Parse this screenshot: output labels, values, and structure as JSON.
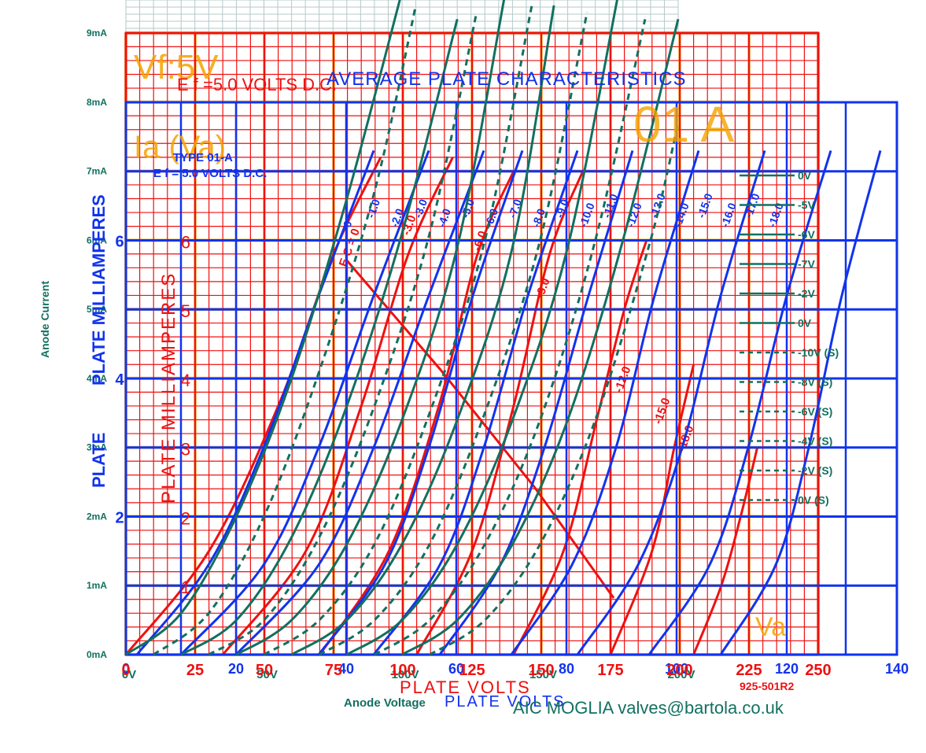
{
  "colors": {
    "red": "#ee1111",
    "blue": "#1133ee",
    "green": "#127060",
    "orange": "#f5a300",
    "grey_grid": "#b6c8c8"
  },
  "overlay_text": {
    "vf": "Vf:5V",
    "ef_red": "E f =5.0 VOLTS D.C.",
    "title_red": "AVERAGE PLATE CHARACTERISTICS",
    "type_blue_1": "TYPE 01-A",
    "type_blue_2": "E f = 5.0 VOLTS D.C.",
    "ia_va": "Ia (Va)",
    "big_type": "01 A",
    "blue_ylabel": "PLATE MILLIAMPERES",
    "red_ylabel": "PLATE MILLIAMPERES",
    "blue_ylabel_plate": "PLATE",
    "blue_xlabel": "PLATE VOLTS",
    "red_xlabel": "PLATE VOLTS",
    "red_code": "925-501R2",
    "credit": "AIC MOGLIA valves@bartola.co.uk",
    "va_corner": "Va"
  },
  "chart_data": [
    {
      "type": "line",
      "name": "overlay (teal)",
      "ylabel": "Anode Current",
      "xlabel": "Anode Voltage",
      "xlim": [
        0,
        200
      ],
      "ylim": [
        0,
        9
      ],
      "x_ticks": [
        "0V",
        "50V",
        "100V",
        "150V",
        "200V"
      ],
      "y_ticks": [
        "0mA",
        "1mA",
        "2mA",
        "3mA",
        "4mA",
        "5mA",
        "6mA",
        "7mA",
        "8mA",
        "9mA"
      ],
      "legend": [
        "0V",
        "-5V",
        "-6V",
        "-7V",
        "-2V",
        "0V",
        "-10V (S)",
        "-8V (S)",
        "-6V (S)",
        "-4V (S)",
        "-2V (S)",
        "0V (S)"
      ],
      "legend_placement": "right",
      "series": [
        {
          "name": "0V",
          "x": [
            0,
            20,
            40,
            60,
            80,
            100
          ],
          "y": [
            0,
            0.6,
            2.0,
            4.0,
            6.6,
            9.6
          ]
        },
        {
          "name": "-5V",
          "x": [
            20,
            40,
            60,
            80,
            100,
            120
          ],
          "y": [
            0,
            0.5,
            1.7,
            3.6,
            6.1,
            9.2
          ]
        },
        {
          "name": "-6V",
          "x": [
            40,
            60,
            80,
            100,
            120,
            137
          ],
          "y": [
            0,
            0.5,
            1.6,
            3.4,
            5.9,
            9.5
          ]
        },
        {
          "name": "-7V",
          "x": [
            60,
            80,
            100,
            120,
            140,
            155
          ],
          "y": [
            0,
            0.5,
            1.6,
            3.4,
            5.9,
            9.4
          ]
        },
        {
          "name": "-2V",
          "x": [
            80,
            100,
            120,
            140,
            160,
            178
          ],
          "y": [
            0,
            0.5,
            1.6,
            3.4,
            5.9,
            9.5
          ]
        },
        {
          "name": "0V",
          "x": [
            100,
            120,
            140,
            160,
            180,
            200
          ],
          "y": [
            0,
            0.5,
            1.6,
            3.4,
            6.0,
            9.2
          ]
        },
        {
          "name": "-10V (S)",
          "x": [
            10,
            30,
            50,
            70,
            90,
            105
          ],
          "y": [
            0,
            0.6,
            2.0,
            4.1,
            6.7,
            9.4
          ]
        },
        {
          "name": "-8V (S)",
          "x": [
            30,
            50,
            70,
            90,
            110,
            127
          ],
          "y": [
            0,
            0.5,
            1.7,
            3.6,
            6.1,
            9.3
          ]
        },
        {
          "name": "-6V (S)",
          "x": [
            50,
            70,
            90,
            110,
            130,
            147
          ],
          "y": [
            0,
            0.5,
            1.6,
            3.5,
            6.0,
            9.4
          ]
        },
        {
          "name": "-4V (S)",
          "x": [
            70,
            90,
            110,
            130,
            150,
            167
          ],
          "y": [
            0,
            0.5,
            1.6,
            3.5,
            6.0,
            9.3
          ]
        },
        {
          "name": "-2V (S)",
          "x": [
            90,
            110,
            130,
            150,
            170,
            188
          ],
          "y": [
            0,
            0.5,
            1.6,
            3.4,
            6.0,
            9.2
          ]
        },
        {
          "name": "0V (S)",
          "x": [
            110,
            130,
            150,
            170,
            190,
            200
          ],
          "y": [
            0,
            0.5,
            1.6,
            3.4,
            6.0,
            7.7
          ]
        }
      ]
    },
    {
      "type": "line",
      "name": "overlay (blue)",
      "ylabel": "PLATE MILLIAMPERES",
      "xlabel": "PLATE VOLTS",
      "xlim": [
        0,
        140
      ],
      "ylim": [
        0,
        8
      ],
      "x_ticks": [
        "0",
        "20",
        "40",
        "60",
        "80",
        "100",
        "120",
        "140"
      ],
      "y_ticks": [
        "2",
        "4",
        "6"
      ],
      "curve_labels": [
        "0",
        "-1.0",
        "-2.0",
        "-3.0",
        "-4.0",
        "-5.0",
        "-6.0",
        "-7.0",
        "-8.0",
        "-9.0",
        "-10.0",
        "-11.0",
        "-12.0",
        "-13.0",
        "-14.0",
        "-15.0",
        "-16.0",
        "-17.0",
        "-18.0"
      ],
      "series": [
        {
          "name": "0",
          "x": [
            2,
            15,
            25,
            35,
            45
          ],
          "y": [
            0,
            1.3,
            3.0,
            5.2,
            7.3
          ]
        },
        {
          "name": "-2.0",
          "x": [
            10,
            25,
            35,
            45,
            55
          ],
          "y": [
            0,
            1.3,
            3.0,
            5.2,
            7.3
          ]
        },
        {
          "name": "-4.0",
          "x": [
            20,
            35,
            45,
            55,
            65
          ],
          "y": [
            0,
            1.3,
            3.0,
            5.2,
            7.3
          ]
        },
        {
          "name": "-6.0",
          "x": [
            35,
            47,
            55,
            63,
            72
          ],
          "y": [
            0,
            1.3,
            3.0,
            5.2,
            7.3
          ]
        },
        {
          "name": "-8.0",
          "x": [
            45,
            57,
            65,
            73,
            82
          ],
          "y": [
            0,
            1.3,
            3.0,
            5.2,
            7.3
          ]
        },
        {
          "name": "-10.0",
          "x": [
            57,
            68,
            76,
            84,
            92
          ],
          "y": [
            0,
            1.3,
            3.0,
            5.2,
            7.3
          ]
        },
        {
          "name": "-12.0",
          "x": [
            70,
            81,
            89,
            96,
            104
          ],
          "y": [
            0,
            1.3,
            3.0,
            5.2,
            7.3
          ]
        },
        {
          "name": "-14.0",
          "x": [
            82,
            93,
            101,
            108,
            116
          ],
          "y": [
            0,
            1.3,
            3.0,
            5.2,
            7.3
          ]
        },
        {
          "name": "-16.0",
          "x": [
            95,
            106,
            113,
            120,
            128
          ],
          "y": [
            0,
            1.3,
            3.0,
            5.2,
            7.3
          ]
        },
        {
          "name": "-18.0",
          "x": [
            108,
            118,
            124,
            130,
            137
          ],
          "y": [
            0,
            1.3,
            3.0,
            5.2,
            7.3
          ]
        }
      ]
    },
    {
      "type": "line",
      "name": "original (red)",
      "title": "AVERAGE PLATE CHARACTERISTICS",
      "xlabel": "PLATE VOLTS",
      "ylabel": "PLATE MILLIAMPERES",
      "xlim": [
        0,
        250
      ],
      "ylim": [
        0,
        9
      ],
      "x_ticks": [
        "0",
        "25",
        "50",
        "75",
        "100",
        "125",
        "150",
        "175",
        "200",
        "225",
        "250"
      ],
      "y_ticks": [
        "1",
        "2",
        "3",
        "4",
        "5",
        "6"
      ],
      "curve_labels": [
        "E C = 0",
        "-3.0",
        "-6.0",
        "-9.0",
        "-12.0",
        "-15.0",
        "-18.0"
      ],
      "series": [
        {
          "name": "E C = 0",
          "x": [
            0,
            30,
            55,
            75,
            92
          ],
          "y": [
            0,
            1.5,
            3.6,
            5.8,
            7.2
          ]
        },
        {
          "name": "-3.0",
          "x": [
            35,
            65,
            85,
            102,
            118
          ],
          "y": [
            0,
            1.5,
            3.6,
            5.8,
            7.2
          ]
        },
        {
          "name": "-6.0",
          "x": [
            70,
            95,
            113,
            127,
            140
          ],
          "y": [
            0,
            1.5,
            3.6,
            5.8,
            7.0
          ]
        },
        {
          "name": "-9.0",
          "x": [
            105,
            125,
            140,
            153,
            165
          ],
          "y": [
            0,
            1.5,
            3.6,
            5.8,
            7.0
          ]
        },
        {
          "name": "-12.0",
          "x": [
            140,
            158,
            170,
            180,
            188
          ],
          "y": [
            0,
            1.5,
            3.4,
            5.0,
            6.0
          ]
        },
        {
          "name": "-15.0",
          "x": [
            175,
            190,
            198,
            205
          ],
          "y": [
            0,
            1.5,
            3.0,
            4.2
          ]
        },
        {
          "name": "-18.0",
          "x": [
            205,
            215,
            222,
            228
          ],
          "y": [
            0,
            1.0,
            2.0,
            3.0
          ]
        }
      ]
    }
  ]
}
